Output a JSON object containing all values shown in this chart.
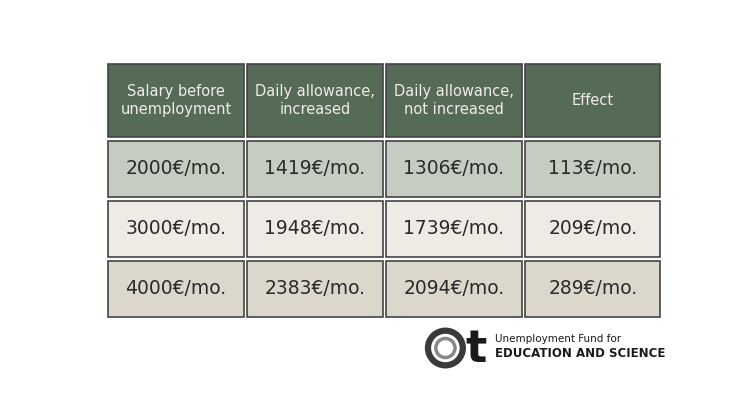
{
  "headers": [
    "Salary before\nunemployment",
    "Daily allowance,\nincreased",
    "Daily allowance,\nnot increased",
    "Effect"
  ],
  "rows": [
    [
      "2000€/mo.",
      "1419€/mo.",
      "1306€/mo.",
      "113€/mo."
    ],
    [
      "3000€/mo.",
      "1948€/mo.",
      "1739€/mo.",
      "209€/mo."
    ],
    [
      "4000€/mo.",
      "2383€/mo.",
      "2094€/mo.",
      "289€/mo."
    ]
  ],
  "header_bg": "#556B55",
  "header_text_color": "#f0ede8",
  "row_bg_colors": [
    [
      "#c5ccc0",
      "#c5ccc0",
      "#c5ccc0",
      "#c5ccc0"
    ],
    [
      "#eeebe5",
      "#eeebe5",
      "#eeebe5",
      "#eeebe5"
    ],
    [
      "#dcd7cb",
      "#dcd7cb",
      "#dcd7cb",
      "#dcd7cb"
    ]
  ],
  "cell_text_color": "#2a2a2a",
  "border_color": "#444444",
  "background_color": "#ffffff",
  "font_size_header": 10.5,
  "font_size_body": 13.5,
  "logo_text_line1": "Unemployment Fund for",
  "logo_text_line2": "EDUCATION AND SCIENCE"
}
